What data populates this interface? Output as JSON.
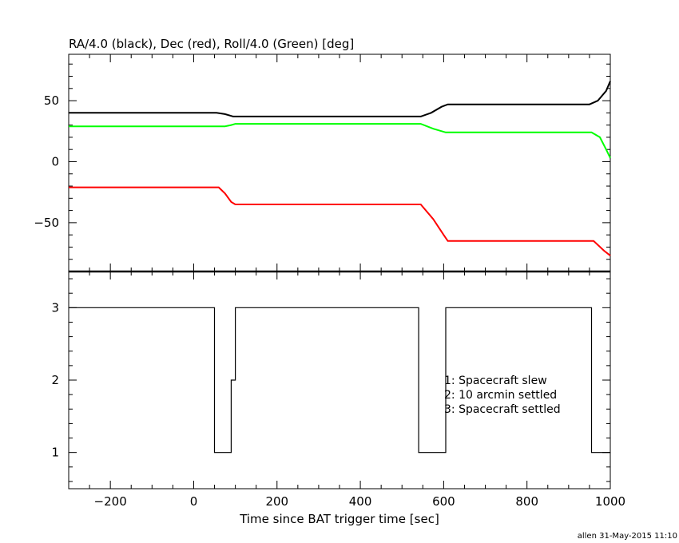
{
  "chart_data": [
    {
      "type": "line",
      "title": "RA/4.0 (black), Dec (red), Roll/4.0 (Green) [deg]",
      "xlim": [
        -300,
        1000
      ],
      "ylim": [
        -90,
        88
      ],
      "ytick_labels": [
        "50",
        "0",
        "−50"
      ],
      "ytick_values": [
        50,
        0,
        -50
      ],
      "series": [
        {
          "color": "#000000",
          "points": [
            [
              -300,
              40
            ],
            [
              55,
              40
            ],
            [
              75,
              39
            ],
            [
              95,
              37
            ],
            [
              200,
              37
            ],
            [
              400,
              37
            ],
            [
              545,
              37
            ],
            [
              570,
              40
            ],
            [
              595,
              45
            ],
            [
              610,
              47
            ],
            [
              700,
              47
            ],
            [
              850,
              47
            ],
            [
              950,
              47
            ],
            [
              970,
              50
            ],
            [
              990,
              58
            ],
            [
              1000,
              66
            ]
          ]
        },
        {
          "color": "#00ff00",
          "points": [
            [
              -300,
              29
            ],
            [
              75,
              29
            ],
            [
              90,
              30
            ],
            [
              100,
              31
            ],
            [
              200,
              31
            ],
            [
              400,
              31
            ],
            [
              545,
              31
            ],
            [
              575,
              27
            ],
            [
              605,
              24
            ],
            [
              700,
              24
            ],
            [
              850,
              24
            ],
            [
              955,
              24
            ],
            [
              975,
              20
            ],
            [
              990,
              10
            ],
            [
              1000,
              3
            ]
          ]
        },
        {
          "color": "#ff0000",
          "points": [
            [
              -300,
              -21
            ],
            [
              60,
              -21
            ],
            [
              75,
              -26
            ],
            [
              90,
              -33
            ],
            [
              100,
              -35
            ],
            [
              200,
              -35
            ],
            [
              400,
              -35
            ],
            [
              545,
              -35
            ],
            [
              575,
              -47
            ],
            [
              600,
              -60
            ],
            [
              610,
              -65
            ],
            [
              700,
              -65
            ],
            [
              850,
              -65
            ],
            [
              960,
              -65
            ],
            [
              985,
              -73
            ],
            [
              1000,
              -77
            ]
          ]
        }
      ]
    },
    {
      "type": "line",
      "xlim": [
        -300,
        1000
      ],
      "ylim": [
        0.5,
        3.5
      ],
      "ytick_labels": [
        "3",
        "2",
        "1"
      ],
      "ytick_values": [
        3,
        2,
        1
      ],
      "step_points": [
        [
          -300,
          3
        ],
        [
          50,
          3
        ],
        [
          50,
          1
        ],
        [
          90,
          1
        ],
        [
          90,
          2
        ],
        [
          100,
          2
        ],
        [
          100,
          3
        ],
        [
          540,
          3
        ],
        [
          540,
          1
        ],
        [
          605,
          1
        ],
        [
          605,
          3
        ],
        [
          955,
          3
        ],
        [
          955,
          1
        ],
        [
          1000,
          1
        ]
      ],
      "annotations": [
        "1: Spacecraft slew",
        "2: 10 arcmin settled",
        "3: Spacecraft settled"
      ]
    }
  ],
  "xaxis": {
    "label": "Time since BAT trigger time [sec]",
    "tick_labels": [
      "−200",
      "0",
      "200",
      "400",
      "600",
      "800",
      "1000"
    ],
    "tick_values": [
      -200,
      0,
      200,
      400,
      600,
      800,
      1000
    ]
  },
  "footer": "allen 31-May-2015 11:10"
}
